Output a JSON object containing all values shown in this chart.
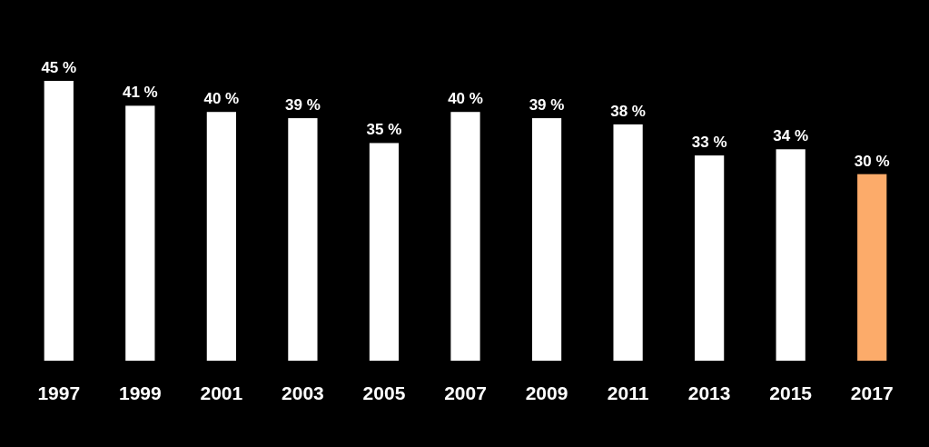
{
  "chart_data": {
    "type": "bar",
    "categories": [
      "1997",
      "1999",
      "2001",
      "2003",
      "2005",
      "2007",
      "2009",
      "2011",
      "2013",
      "2015",
      "2017"
    ],
    "values": [
      45,
      41,
      40,
      39,
      35,
      40,
      39,
      38,
      33,
      34,
      30
    ],
    "colors": [
      "#ffffff",
      "#ffffff",
      "#ffffff",
      "#ffffff",
      "#ffffff",
      "#ffffff",
      "#ffffff",
      "#ffffff",
      "#ffffff",
      "#ffffff",
      "#fcab6a"
    ],
    "value_labels": [
      "45 %",
      "41 %",
      "40 %",
      "39 %",
      "35 %",
      "40 %",
      "39 %",
      "38 %",
      "33 %",
      "34 %",
      "30 %"
    ]
  }
}
